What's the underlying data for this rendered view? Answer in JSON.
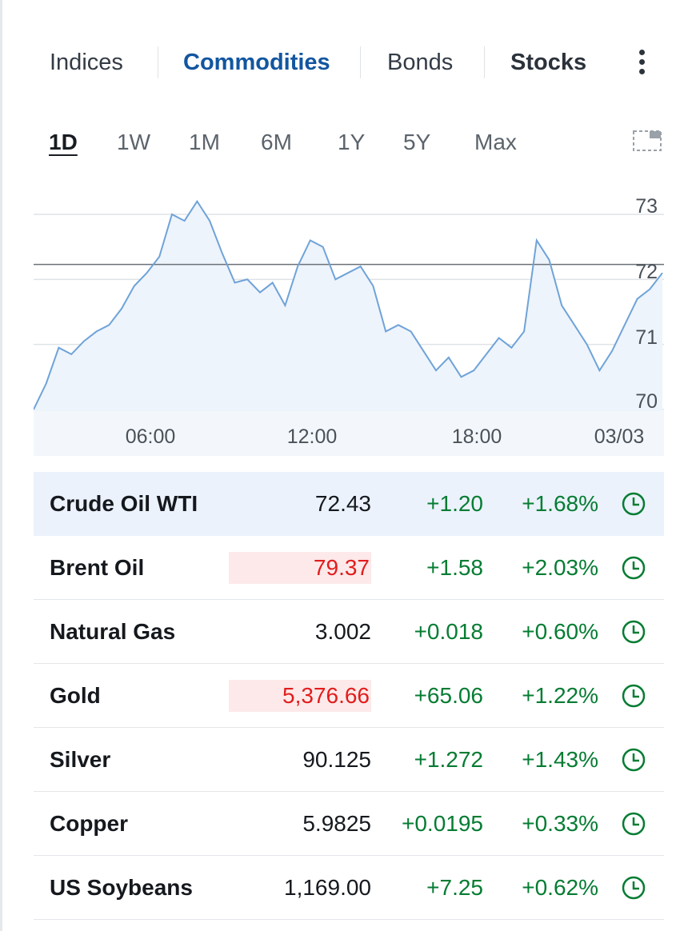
{
  "tabs": [
    {
      "label": "Indices",
      "active": false
    },
    {
      "label": "Commodities",
      "active": true
    },
    {
      "label": "Bonds",
      "active": false
    },
    {
      "label": "Stocks",
      "active": false
    }
  ],
  "more_icon": "vertical-ellipsis-icon",
  "periods": [
    "1D",
    "1W",
    "1M",
    "6M",
    "1Y",
    "5Y",
    "Max"
  ],
  "active_period": "1D",
  "colors": {
    "accent": "#1256a0",
    "positive": "#067c33",
    "negative_flash": "#e11d1d",
    "line": "#6fa3d9",
    "area": "#eef4fb",
    "selected_row": "#ebf2fb"
  },
  "chart_data": {
    "type": "area",
    "y_ticks": [
      "73",
      "72",
      "71",
      "70"
    ],
    "x_ticks": [
      "06:00",
      "12:00",
      "18:00",
      "03/03"
    ],
    "ylim": [
      70,
      73.3
    ],
    "reference_line": 72.23,
    "grid": true,
    "series": [
      {
        "x": [
          "00:00",
          "00:30",
          "01:00",
          "01:30",
          "02:00",
          "02:30",
          "03:00",
          "03:30",
          "04:00",
          "04:30",
          "05:00",
          "05:30",
          "06:00",
          "06:30",
          "07:00",
          "07:30",
          "08:00",
          "08:30",
          "09:00",
          "09:30",
          "10:00",
          "10:30",
          "11:00",
          "11:30",
          "12:00",
          "12:30",
          "13:00",
          "13:30",
          "14:00",
          "14:30",
          "15:00",
          "15:30",
          "16:00",
          "16:30",
          "17:00",
          "17:30",
          "18:00",
          "18:30",
          "19:00",
          "19:30",
          "20:00",
          "20:30",
          "21:00",
          "21:30",
          "22:00",
          "22:30",
          "23:00",
          "23:30",
          "00:00",
          "00:30",
          "01:00"
        ],
        "values": [
          70.0,
          70.4,
          70.95,
          70.85,
          71.05,
          71.2,
          71.3,
          71.55,
          71.9,
          72.1,
          72.35,
          73.0,
          72.9,
          73.2,
          72.9,
          72.4,
          71.95,
          72.0,
          71.8,
          71.95,
          71.6,
          72.2,
          72.6,
          72.5,
          72.0,
          72.1,
          72.2,
          71.9,
          71.2,
          71.3,
          71.2,
          70.9,
          70.6,
          70.8,
          70.5,
          70.6,
          70.85,
          71.1,
          70.95,
          71.2,
          72.6,
          72.3,
          71.6,
          71.3,
          71.0,
          70.6,
          70.9,
          71.3,
          71.7,
          71.85,
          72.1
        ]
      }
    ]
  },
  "instruments": [
    {
      "name": "Crude Oil WTI",
      "price": "72.43",
      "change": "+1.20",
      "pct": "+1.68%",
      "flash": false,
      "selected": true
    },
    {
      "name": "Brent Oil",
      "price": "79.37",
      "change": "+1.58",
      "pct": "+2.03%",
      "flash": true,
      "selected": false
    },
    {
      "name": "Natural Gas",
      "price": "3.002",
      "change": "+0.018",
      "pct": "+0.60%",
      "flash": false,
      "selected": false
    },
    {
      "name": "Gold",
      "price": "5,376.66",
      "change": "+65.06",
      "pct": "+1.22%",
      "flash": true,
      "selected": false
    },
    {
      "name": "Silver",
      "price": "90.125",
      "change": "+1.272",
      "pct": "+1.43%",
      "flash": false,
      "selected": false
    },
    {
      "name": "Copper",
      "price": "5.9825",
      "change": "+0.0195",
      "pct": "+0.33%",
      "flash": false,
      "selected": false
    },
    {
      "name": "US Soybeans",
      "price": "1,169.00",
      "change": "+7.25",
      "pct": "+0.62%",
      "flash": false,
      "selected": false
    }
  ],
  "row_icon": "clock-icon"
}
